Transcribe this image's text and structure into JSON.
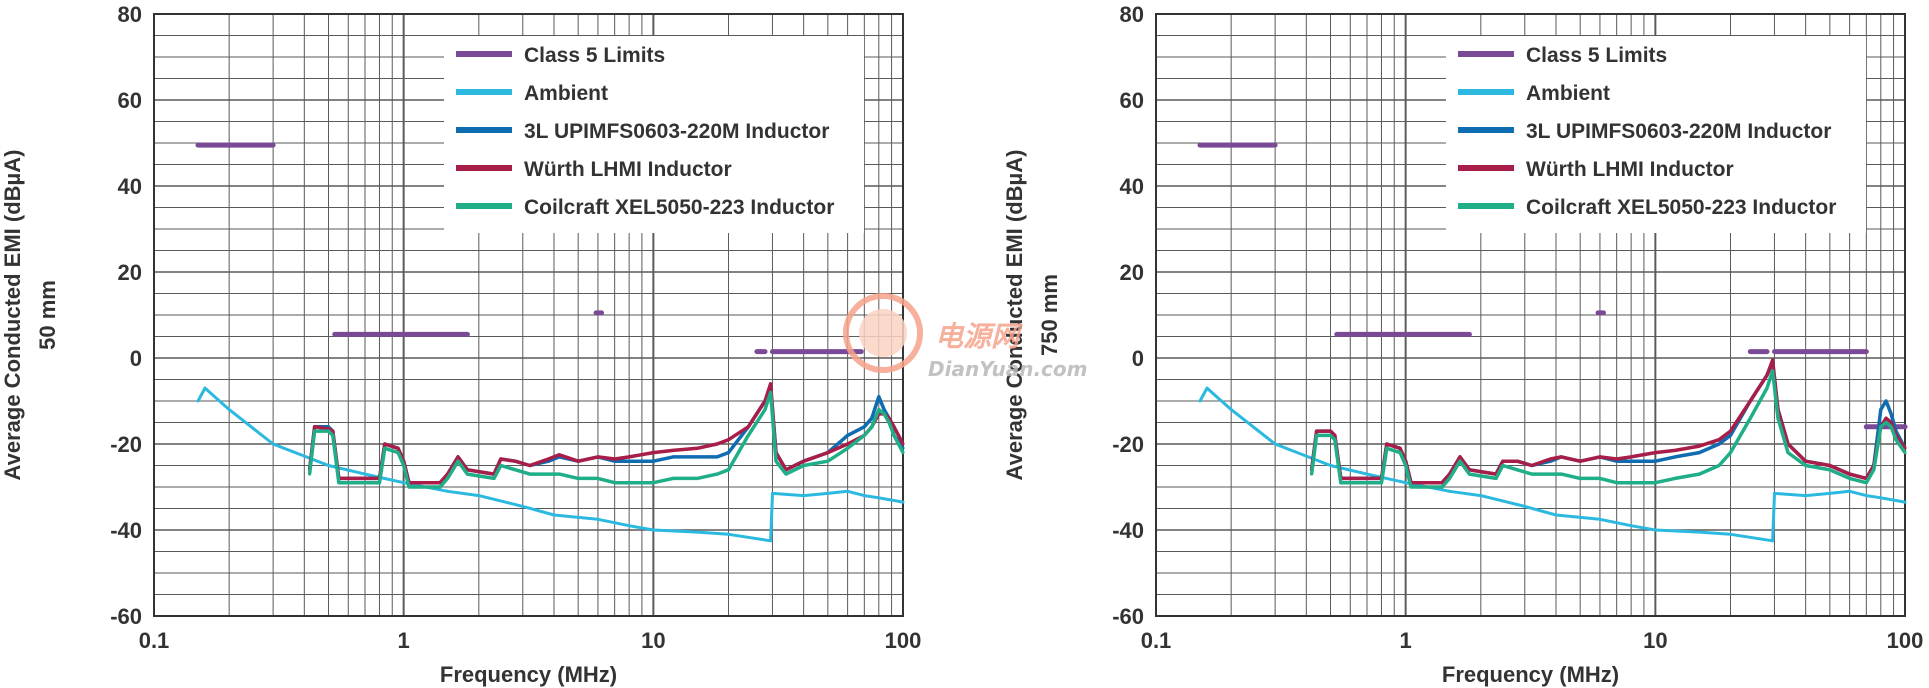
{
  "colors": {
    "class5": "#7b4a97",
    "ambient": "#2bb9e0",
    "upimfs": "#0f6cb0",
    "wurth": "#a81e48",
    "coilcraft": "#1fae88",
    "grid": "#5a5a5a"
  },
  "watermark": {
    "cn": "电源网",
    "en": "DianYuan.com"
  },
  "chart_data": [
    {
      "type": "line",
      "xscale": "log",
      "xlim": [
        0.1,
        100
      ],
      "ylim": [
        -60,
        80
      ],
      "xticks": [
        "0.1",
        "1",
        "10",
        "100"
      ],
      "yticks": [
        "80",
        "60",
        "40",
        "20",
        "0",
        "-20",
        "-40",
        "-60"
      ],
      "xlabel": "Frequency (MHz)",
      "ylabel": "Average Conducted EMI (dBµA)",
      "ylabel2": "50 mm",
      "grid": true,
      "legend_position": "top-right",
      "series": [
        {
          "name": "Class 5 Limits",
          "segments": [
            {
              "x": [
                0.15,
                0.3
              ],
              "y": [
                49.5,
                49.5
              ]
            },
            {
              "x": [
                0.53,
                1.8
              ],
              "y": [
                5.5,
                5.5
              ]
            },
            {
              "x": [
                5.9,
                6.2
              ],
              "y": [
                10.5,
                10.5
              ]
            },
            {
              "x": [
                26,
                28
              ],
              "y": [
                1.5,
                1.5
              ]
            },
            {
              "x": [
                30,
                68
              ],
              "y": [
                1.5,
                1.5
              ]
            }
          ]
        },
        {
          "name": "Ambient",
          "x": [
            0.15,
            0.16,
            0.2,
            0.3,
            0.5,
            0.7,
            1,
            1.5,
            2,
            3,
            4,
            6,
            8,
            10,
            15,
            20,
            29.5,
            30,
            40,
            50,
            60,
            70,
            80,
            100
          ],
          "y": [
            -10,
            -7,
            -12,
            -20,
            -25,
            -27,
            -29,
            -31,
            -32,
            -34.5,
            -36.5,
            -37.5,
            -39,
            -40,
            -40.5,
            -41,
            -42.5,
            -31.5,
            -32,
            -31.5,
            -31,
            -32,
            -32.5,
            -33.5
          ]
        },
        {
          "name": "3L UPIMFS0603-220M Inductor",
          "x": [
            0.42,
            0.44,
            0.5,
            0.52,
            0.55,
            0.8,
            0.84,
            0.95,
            1,
            1.05,
            1.4,
            1.5,
            1.65,
            1.8,
            2.3,
            2.45,
            2.8,
            3.2,
            3.8,
            4.2,
            5,
            6,
            7,
            8,
            10,
            12,
            15,
            18,
            20,
            24,
            28,
            29.5,
            31,
            34,
            40,
            50,
            60,
            70,
            75,
            80,
            84,
            88,
            92,
            100
          ],
          "y": [
            -26,
            -16,
            -16,
            -17,
            -28,
            -28,
            -20,
            -21,
            -24,
            -29,
            -29,
            -27,
            -23,
            -26,
            -27,
            -23.5,
            -24,
            -25,
            -24,
            -23,
            -24,
            -23,
            -24,
            -24,
            -24,
            -23,
            -23,
            -23,
            -22,
            -16,
            -10,
            -7,
            -22,
            -26,
            -24,
            -22,
            -18,
            -16,
            -14,
            -9,
            -12,
            -14,
            -18,
            -21
          ]
        },
        {
          "name": "Würth LHMI Inductor",
          "x": [
            0.42,
            0.44,
            0.5,
            0.52,
            0.55,
            0.8,
            0.84,
            0.95,
            1,
            1.05,
            1.4,
            1.5,
            1.65,
            1.8,
            2.3,
            2.45,
            2.8,
            3.2,
            3.8,
            4.2,
            5,
            6,
            7,
            8,
            10,
            12,
            15,
            18,
            20,
            24,
            28,
            29.5,
            31,
            34,
            40,
            50,
            60,
            70,
            75,
            80,
            84,
            88,
            92,
            100
          ],
          "y": [
            -26,
            -16,
            -16.5,
            -17,
            -28,
            -28,
            -20,
            -21,
            -24,
            -29,
            -29,
            -27,
            -23,
            -26,
            -27,
            -23.5,
            -24,
            -25,
            -23.5,
            -22.5,
            -24,
            -23,
            -23.5,
            -23,
            -22,
            -21.5,
            -21,
            -20,
            -19,
            -16,
            -10,
            -6,
            -22,
            -26,
            -24,
            -22,
            -20,
            -18,
            -16,
            -13,
            -13,
            -14,
            -16,
            -20
          ]
        },
        {
          "name": "Coilcraft XEL5050-223 Inductor",
          "x": [
            0.42,
            0.44,
            0.5,
            0.52,
            0.55,
            0.8,
            0.84,
            0.95,
            1,
            1.05,
            1.4,
            1.5,
            1.65,
            1.8,
            2.3,
            2.45,
            2.8,
            3.2,
            3.8,
            4.2,
            5,
            6,
            7,
            8,
            10,
            12,
            15,
            18,
            20,
            24,
            28,
            29.5,
            31,
            34,
            40,
            50,
            60,
            70,
            75,
            80,
            84,
            88,
            92,
            100
          ],
          "y": [
            -27,
            -17,
            -17,
            -18,
            -29,
            -29,
            -21,
            -22,
            -25,
            -30,
            -30,
            -28,
            -24,
            -27,
            -28,
            -25,
            -26,
            -27,
            -27,
            -27,
            -28,
            -28,
            -29,
            -29,
            -29,
            -28,
            -28,
            -27,
            -26,
            -18,
            -12,
            -8,
            -24,
            -27,
            -25,
            -24,
            -21,
            -18,
            -16,
            -12,
            -13,
            -15,
            -18,
            -22
          ]
        }
      ]
    },
    {
      "type": "line",
      "xscale": "log",
      "xlim": [
        0.1,
        100
      ],
      "ylim": [
        -60,
        80
      ],
      "xticks": [
        "0.1",
        "1",
        "10",
        "100"
      ],
      "yticks": [
        "80",
        "60",
        "40",
        "20",
        "0",
        "-20",
        "-40",
        "-60"
      ],
      "xlabel": "Frequency (MHz)",
      "ylabel": "Average Conducted EMI (dBµA)",
      "ylabel2": "750 mm",
      "grid": true,
      "legend_position": "top-right",
      "series": [
        {
          "name": "Class 5 Limits",
          "segments": [
            {
              "x": [
                0.15,
                0.3
              ],
              "y": [
                49.5,
                49.5
              ]
            },
            {
              "x": [
                0.53,
                1.8
              ],
              "y": [
                5.5,
                5.5
              ]
            },
            {
              "x": [
                5.9,
                6.2
              ],
              "y": [
                10.5,
                10.5
              ]
            },
            {
              "x": [
                24,
                28
              ],
              "y": [
                1.5,
                1.5
              ]
            },
            {
              "x": [
                30,
                70
              ],
              "y": [
                1.5,
                1.5
              ]
            },
            {
              "x": [
                70,
                100
              ],
              "y": [
                -16,
                -16
              ]
            }
          ]
        },
        {
          "name": "Ambient",
          "x": [
            0.15,
            0.16,
            0.2,
            0.3,
            0.5,
            0.7,
            1,
            1.5,
            2,
            3,
            4,
            6,
            8,
            10,
            15,
            20,
            29.5,
            30,
            40,
            50,
            60,
            70,
            80,
            100
          ],
          "y": [
            -10,
            -7,
            -12,
            -20,
            -25,
            -27,
            -29,
            -31,
            -32,
            -34.5,
            -36.5,
            -37.5,
            -39,
            -40,
            -40.5,
            -41,
            -42.5,
            -31.5,
            -32,
            -31.5,
            -31,
            -32,
            -32.5,
            -33.5
          ]
        },
        {
          "name": "3L UPIMFS0603-220M Inductor",
          "x": [
            0.42,
            0.44,
            0.5,
            0.52,
            0.55,
            0.8,
            0.84,
            0.95,
            1,
            1.05,
            1.4,
            1.5,
            1.65,
            1.8,
            2.3,
            2.45,
            2.8,
            3.2,
            3.8,
            4.2,
            5,
            6,
            7,
            8,
            10,
            12,
            15,
            18,
            20,
            24,
            28,
            29.5,
            31,
            34,
            40,
            50,
            60,
            70,
            75,
            80,
            84,
            88,
            92,
            100
          ],
          "y": [
            -26,
            -17,
            -17,
            -18,
            -28,
            -28,
            -20,
            -21,
            -24,
            -29,
            -29,
            -27,
            -23,
            -26,
            -27,
            -24,
            -24,
            -25,
            -24,
            -23,
            -24,
            -23,
            -24,
            -24,
            -24,
            -23,
            -22,
            -20,
            -18,
            -10,
            -4,
            -1,
            -12,
            -20,
            -24,
            -25,
            -27,
            -28,
            -25,
            -12,
            -10,
            -13,
            -17,
            -21
          ]
        },
        {
          "name": "Würth LHMI Inductor",
          "x": [
            0.42,
            0.44,
            0.5,
            0.52,
            0.55,
            0.8,
            0.84,
            0.95,
            1,
            1.05,
            1.4,
            1.5,
            1.65,
            1.8,
            2.3,
            2.45,
            2.8,
            3.2,
            3.8,
            4.2,
            5,
            6,
            7,
            8,
            10,
            12,
            15,
            18,
            20,
            24,
            28,
            29.5,
            31,
            34,
            40,
            50,
            60,
            70,
            75,
            80,
            84,
            88,
            92,
            100
          ],
          "y": [
            -26,
            -17,
            -17,
            -18,
            -28,
            -28,
            -20,
            -21,
            -24,
            -29,
            -29,
            -27,
            -23,
            -26,
            -27,
            -24,
            -24,
            -25,
            -23.5,
            -23,
            -24,
            -23,
            -23.5,
            -23,
            -22,
            -21.5,
            -20.5,
            -19,
            -17,
            -10,
            -4,
            -0.5,
            -12,
            -20,
            -24,
            -25,
            -27,
            -28,
            -25,
            -16,
            -14,
            -15,
            -18,
            -21
          ]
        },
        {
          "name": "Coilcraft XEL5050-223 Inductor",
          "x": [
            0.42,
            0.44,
            0.5,
            0.52,
            0.55,
            0.8,
            0.84,
            0.95,
            1,
            1.05,
            1.4,
            1.5,
            1.65,
            1.8,
            2.3,
            2.45,
            2.8,
            3.2,
            3.8,
            4.2,
            5,
            6,
            7,
            8,
            10,
            12,
            15,
            18,
            20,
            24,
            28,
            29.5,
            31,
            34,
            40,
            50,
            60,
            70,
            75,
            80,
            84,
            88,
            92,
            100
          ],
          "y": [
            -27,
            -18,
            -18,
            -19,
            -29,
            -29,
            -21,
            -22,
            -25,
            -30,
            -30,
            -28,
            -24,
            -27,
            -28,
            -25,
            -26,
            -27,
            -27,
            -27,
            -28,
            -28,
            -29,
            -29,
            -29,
            -28,
            -27,
            -25,
            -22,
            -14,
            -7,
            -3,
            -14,
            -22,
            -25,
            -26,
            -28,
            -29,
            -26,
            -16,
            -15,
            -16,
            -19,
            -22
          ]
        }
      ]
    }
  ]
}
